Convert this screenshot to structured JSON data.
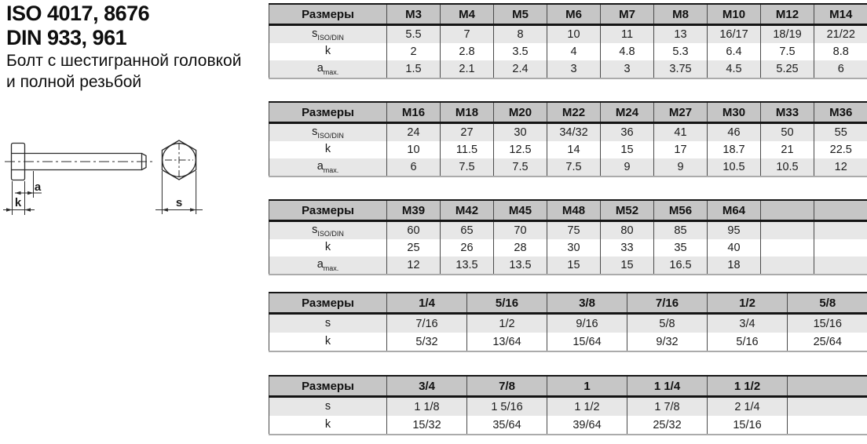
{
  "header": {
    "title_line1": "ISO 4017, 8676",
    "title_line2": "DIN 933, 961",
    "subtitle_line1": "Болт с шестигранной головкой",
    "subtitle_line2": "и полной резьбой"
  },
  "diagram": {
    "labels": {
      "a": "a",
      "k": "k",
      "s": "s"
    }
  },
  "colors": {
    "header_bg": "#c6c6c6",
    "row_alt_bg": "#e7e7e7",
    "border": "#161616"
  },
  "tables": [
    {
      "name": "metric-m3-m14",
      "header": {
        "label": "Размеры",
        "columns": [
          "M3",
          "M4",
          "M5",
          "M6",
          "M7",
          "M8",
          "M10",
          "M12",
          "M14"
        ]
      },
      "rows": [
        {
          "label": "s",
          "label_sub": "ISO/DIN",
          "shaded": true,
          "values": [
            "5.5",
            "7",
            "8",
            "10",
            "11",
            "13",
            "16/17",
            "18/19",
            "21/22"
          ]
        },
        {
          "label": "k",
          "label_sub": "",
          "shaded": false,
          "values": [
            "2",
            "2.8",
            "3.5",
            "4",
            "4.8",
            "5.3",
            "6.4",
            "7.5",
            "8.8"
          ]
        },
        {
          "label": "a",
          "label_sub": "max.",
          "shaded": true,
          "values": [
            "1.5",
            "2.1",
            "2.4",
            "3",
            "3",
            "3.75",
            "4.5",
            "5.25",
            "6"
          ]
        }
      ]
    },
    {
      "name": "metric-m16-m36",
      "header": {
        "label": "Размеры",
        "columns": [
          "M16",
          "M18",
          "M20",
          "M22",
          "M24",
          "M27",
          "M30",
          "M33",
          "M36"
        ]
      },
      "rows": [
        {
          "label": "s",
          "label_sub": "ISO/DIN",
          "shaded": true,
          "values": [
            "24",
            "27",
            "30",
            "34/32",
            "36",
            "41",
            "46",
            "50",
            "55"
          ]
        },
        {
          "label": "k",
          "label_sub": "",
          "shaded": false,
          "values": [
            "10",
            "11.5",
            "12.5",
            "14",
            "15",
            "17",
            "18.7",
            "21",
            "22.5"
          ]
        },
        {
          "label": "a",
          "label_sub": "max.",
          "shaded": true,
          "values": [
            "6",
            "7.5",
            "7.5",
            "7.5",
            "9",
            "9",
            "10.5",
            "10.5",
            "12"
          ]
        }
      ]
    },
    {
      "name": "metric-m39-m64",
      "header": {
        "label": "Размеры",
        "columns": [
          "M39",
          "M42",
          "M45",
          "M48",
          "M52",
          "M56",
          "M64",
          "",
          ""
        ]
      },
      "rows": [
        {
          "label": "s",
          "label_sub": "ISO/DIN",
          "shaded": true,
          "values": [
            "60",
            "65",
            "70",
            "75",
            "80",
            "85",
            "95",
            "",
            ""
          ]
        },
        {
          "label": "k",
          "label_sub": "",
          "shaded": false,
          "values": [
            "25",
            "26",
            "28",
            "30",
            "33",
            "35",
            "40",
            "",
            ""
          ]
        },
        {
          "label": "a",
          "label_sub": "max.",
          "shaded": true,
          "values": [
            "12",
            "13.5",
            "13.5",
            "15",
            "15",
            "16.5",
            "18",
            "",
            ""
          ]
        }
      ]
    },
    {
      "name": "imperial-quarter-to-5-8",
      "header": {
        "label": "Размеры",
        "columns": [
          "1/4",
          "5/16",
          "3/8",
          "7/16",
          "1/2",
          "5/8"
        ]
      },
      "rows": [
        {
          "label": "s",
          "label_sub": "",
          "shaded": true,
          "values": [
            "7/16",
            "1/2",
            "9/16",
            "5/8",
            "3/4",
            "15/16"
          ]
        },
        {
          "label": "k",
          "label_sub": "",
          "shaded": false,
          "values": [
            "5/32",
            "13/64",
            "15/64",
            "9/32",
            "5/16",
            "25/64"
          ]
        }
      ]
    },
    {
      "name": "imperial-3-4-to-1-1-2",
      "header": {
        "label": "Размеры",
        "columns": [
          "3/4",
          "7/8",
          "1",
          "1 1/4",
          "1 1/2",
          ""
        ]
      },
      "rows": [
        {
          "label": "s",
          "label_sub": "",
          "shaded": true,
          "values": [
            "1 1/8",
            "1 5/16",
            "1 1/2",
            "1 7/8",
            "2 1/4",
            ""
          ]
        },
        {
          "label": "k",
          "label_sub": "",
          "shaded": false,
          "values": [
            "15/32",
            "35/64",
            "39/64",
            "25/32",
            "15/16",
            ""
          ]
        }
      ]
    }
  ]
}
